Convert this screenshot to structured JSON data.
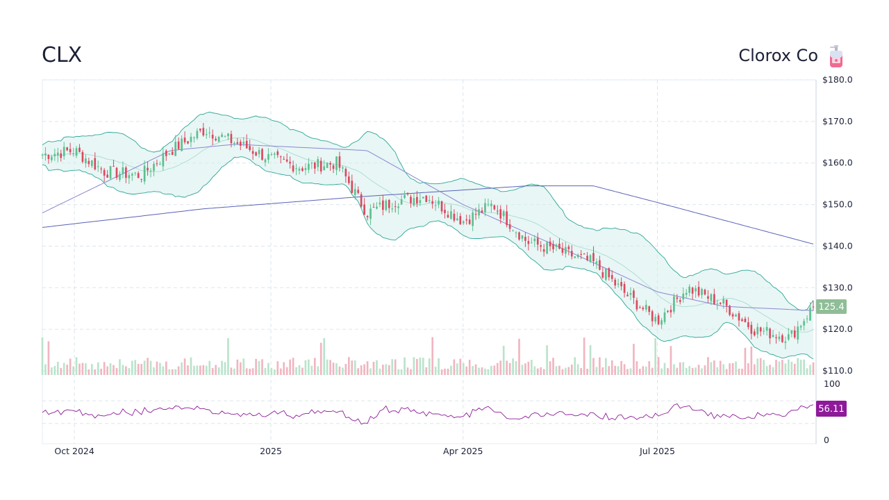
{
  "header": {
    "ticker": "CLX",
    "company": "Clorox Co",
    "logo_icon": "soap-dispenser-icon"
  },
  "colors": {
    "up": "#5dbf8f",
    "down": "#d9495e",
    "up_volume": "#b9e4cb",
    "down_volume": "#f1b5c0",
    "band_fill": "#d6efec",
    "band_line": "#2aa696",
    "middle_band": "#a6ddd1",
    "ma_short": "#8a86d3",
    "ma_long": "#5861b6",
    "rsi": "#8e1a9a",
    "last_price_tag": "#8fbd97",
    "rsi_tag": "#8e1a9a",
    "grid": "#dbe5ec"
  },
  "price_tag": "125.4",
  "rsi_tag": "56.11",
  "chart_data": {
    "type": "candlestick",
    "title": "CLX",
    "subtitle": "Clorox Co",
    "x_tick_labels": [
      "Oct 2024",
      "2025",
      "Apr 2025",
      "Jul 2025"
    ],
    "x_tick_dates": [
      "2024-10-01",
      "2025-01-01",
      "2025-04-01",
      "2025-07-01"
    ],
    "date_range": [
      "2024-09-16",
      "2025-09-12"
    ],
    "y_tick_labels": [
      "$180.0",
      "$170.0",
      "$160.0",
      "$150.0",
      "$140.0",
      "$130.0",
      "$120.0",
      "$110.0"
    ],
    "ylim": [
      110,
      180
    ],
    "last_price": 125.4,
    "indicators": [
      "Bollinger Bands (20)",
      "50-day moving average",
      "200-day moving average",
      "Volume",
      "RSI (14)"
    ],
    "price_series": {
      "name": "close",
      "x": [
        "2024-09-16",
        "2024-10-01",
        "2024-10-15",
        "2024-11-01",
        "2024-11-15",
        "2024-12-01",
        "2024-12-15",
        "2025-01-01",
        "2025-01-15",
        "2025-02-01",
        "2025-02-15",
        "2025-03-01",
        "2025-03-15",
        "2025-04-01",
        "2025-04-15",
        "2025-05-01",
        "2025-05-15",
        "2025-06-01",
        "2025-06-15",
        "2025-07-01",
        "2025-07-15",
        "2025-08-01",
        "2025-08-15",
        "2025-09-01",
        "2025-09-12"
      ],
      "values": [
        162,
        163,
        158,
        157,
        163,
        168,
        165,
        161,
        159,
        160,
        148,
        151,
        152,
        146,
        150,
        141,
        139,
        136,
        129,
        122,
        130,
        126,
        120,
        118,
        125.4
      ]
    },
    "ma_long_series": {
      "x": [
        "2024-09-16",
        "2024-12-01",
        "2025-02-15",
        "2025-05-01",
        "2025-06-01",
        "2025-07-01",
        "2025-09-12"
      ],
      "values": [
        144.5,
        149,
        152,
        154.5,
        154.5,
        150.5,
        140.5
      ]
    },
    "ma_short_series": {
      "x": [
        "2024-09-16",
        "2024-11-15",
        "2024-12-15",
        "2025-02-15",
        "2025-04-01",
        "2025-05-15",
        "2025-07-01",
        "2025-08-01",
        "2025-09-12"
      ],
      "values": [
        148,
        163,
        164.5,
        163,
        150,
        140,
        129,
        125.5,
        124.5
      ]
    },
    "rsi": {
      "ylim": [
        0,
        100
      ],
      "y_tick_labels": [
        "100",
        "0"
      ],
      "last": 56.11
    }
  }
}
